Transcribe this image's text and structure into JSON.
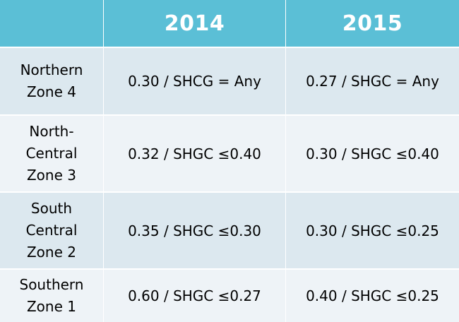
{
  "table": {
    "headers": [
      "",
      "2014",
      "2015"
    ],
    "rows": [
      {
        "zone_lines": [
          "Northern",
          "Zone 4"
        ],
        "v2014": "0.30 / SHCG = Any",
        "v2015": "0.27 / SHGC = Any"
      },
      {
        "zone_lines": [
          "North-",
          "Central",
          "Zone 3"
        ],
        "v2014": "0.32 / SHGC ≤0.40",
        "v2015": "0.30 / SHGC ≤0.40"
      },
      {
        "zone_lines": [
          "South",
          "Central",
          "Zone 2"
        ],
        "v2014": "0.35 / SHGC ≤0.30",
        "v2015": "0.30 / SHGC ≤0.25"
      },
      {
        "zone_lines": [
          "Southern",
          "Zone 1"
        ],
        "v2014": "0.60 / SHGC ≤0.27",
        "v2015": "0.40 / SHGC ≤0.25"
      }
    ]
  },
  "colors": {
    "header_bg": "#5bbfd6",
    "row_dark": "#dce8ef",
    "row_light": "#eef3f7"
  }
}
